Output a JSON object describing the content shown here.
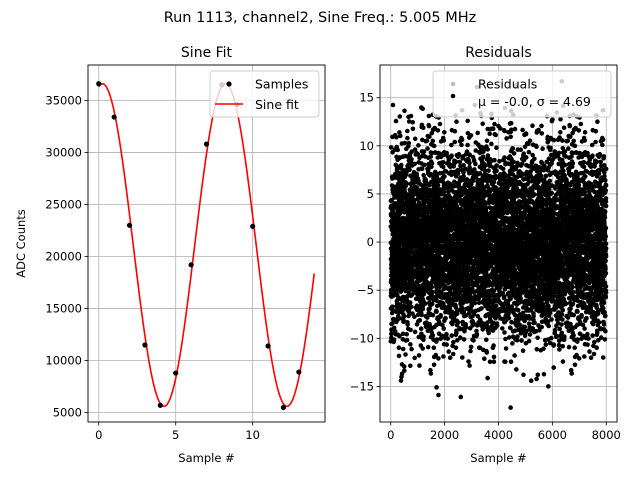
{
  "figure": {
    "suptitle": "Run 1113, channel2, Sine Freq.: 5.005 MHz"
  },
  "chart_data": [
    {
      "type": "scatter",
      "title": "Sine Fit",
      "xlabel": "Sample #",
      "ylabel": "ADC Counts",
      "xlim": [
        -0.7,
        14.7
      ],
      "ylim": [
        4100,
        38400
      ],
      "xticks": [
        0,
        5,
        10
      ],
      "yticks": [
        5000,
        10000,
        15000,
        20000,
        25000,
        30000,
        35000
      ],
      "grid": true,
      "legend": "upper right",
      "colors": {
        "samples": "#000000",
        "fit": "#ff0000"
      },
      "series": [
        {
          "name": "Samples",
          "style": "points",
          "x": [
            0,
            1,
            2,
            3,
            4,
            5,
            6,
            7,
            8,
            9,
            10,
            11,
            12,
            13
          ],
          "y": [
            36600,
            33400,
            23000,
            11500,
            5700,
            8800,
            19200,
            30800,
            36500,
            34600,
            22900,
            11400,
            5500,
            8900
          ]
        },
        {
          "name": "Sine fit",
          "style": "line",
          "model": {
            "offset": 21100,
            "amplitude": 15500,
            "period_samples": 7.99,
            "phase_rad": 1.38
          },
          "x_range": [
            0,
            14
          ]
        }
      ]
    },
    {
      "type": "scatter",
      "title": "Residuals",
      "xlabel": "Sample #",
      "ylabel": "",
      "xlim": [
        -400,
        8400
      ],
      "ylim": [
        -18.7,
        18.4
      ],
      "xticks": [
        0,
        2000,
        4000,
        6000,
        8000
      ],
      "yticks": [
        -15,
        -10,
        -5,
        0,
        5,
        10,
        15
      ],
      "grid": true,
      "legend": "upper right",
      "colors": {
        "points": "#000000",
        "legend_marker": "#bfbfbf"
      },
      "series": [
        {
          "name": "Residuals",
          "style": "points",
          "count": 8000,
          "mean": -0.0,
          "sigma": 4.69,
          "x_range": [
            0,
            7999
          ],
          "extremes": [
            [
              4450,
              -17.2
            ],
            [
              1770,
              -15.9
            ],
            [
              2600,
              -16.1
            ],
            [
              1700,
              -15.1
            ],
            [
              5850,
              -15.0
            ],
            [
              6350,
              16.7
            ],
            [
              3200,
              16.1
            ],
            [
              4650,
              16.3
            ]
          ]
        }
      ],
      "stats_label": "μ = -0.0, σ = 4.69"
    }
  ]
}
